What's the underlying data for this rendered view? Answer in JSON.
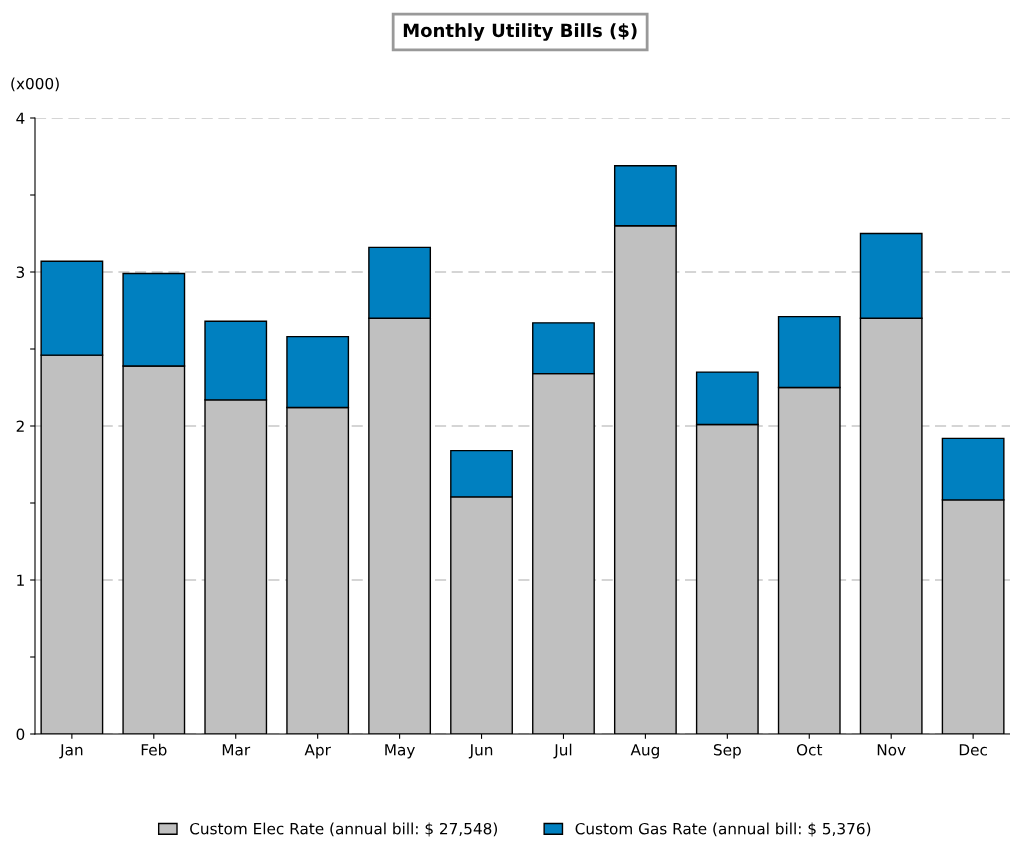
{
  "chart_data": {
    "type": "bar",
    "title": "Monthly Utility Bills ($)",
    "ylabel": "(x000)",
    "stacked": true,
    "categories": [
      "Jan",
      "Feb",
      "Mar",
      "Apr",
      "May",
      "Jun",
      "Jul",
      "Aug",
      "Sep",
      "Oct",
      "Nov",
      "Dec"
    ],
    "series": [
      {
        "name": "Custom Elec Rate (annual bill: $ 27,548)",
        "color": "#c0c0c0",
        "values": [
          2.46,
          2.39,
          2.17,
          2.12,
          2.7,
          1.54,
          2.34,
          3.3,
          2.01,
          2.25,
          2.7,
          1.52
        ]
      },
      {
        "name": "Custom Gas Rate (annual bill: $ 5,376)",
        "color": "#0080c0",
        "values": [
          0.61,
          0.6,
          0.51,
          0.46,
          0.46,
          0.3,
          0.33,
          0.39,
          0.34,
          0.46,
          0.55,
          0.4
        ]
      }
    ],
    "ylim": [
      0,
      4
    ],
    "yticks": [
      0,
      {
        "value": 0.5,
        "label": null
      },
      1,
      {
        "value": 1.5,
        "label": null
      },
      2,
      {
        "value": 2.5,
        "label": null
      },
      3,
      {
        "value": 3.5,
        "label": null
      },
      4
    ],
    "grid": "y",
    "legend": "bottom"
  }
}
